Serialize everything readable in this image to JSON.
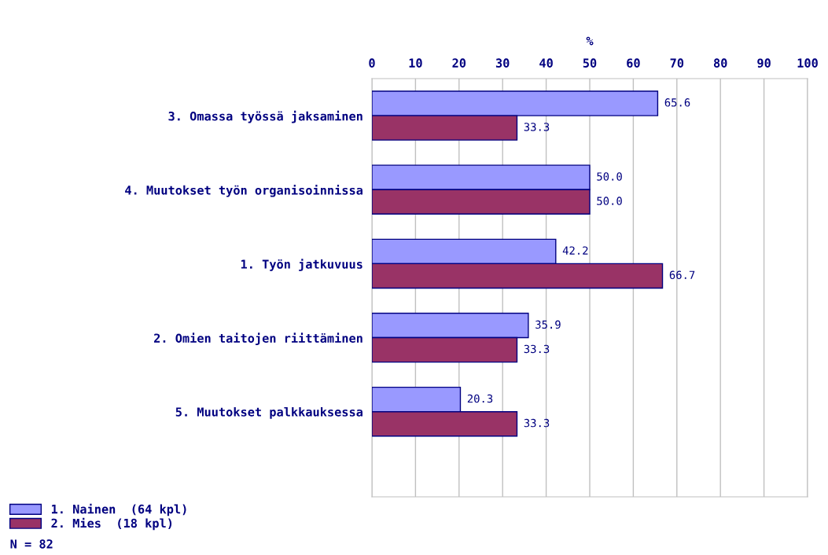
{
  "chart_data": {
    "type": "bar",
    "orientation": "horizontal",
    "xlabel": "%",
    "categories": [
      "3. Omassa työssä jaksaminen",
      "4. Muutokset työn organisoinnissa",
      "1. Työn jatkuvuus",
      "2. Omien taitojen riittäminen",
      "5. Muutokset palkkauksessa"
    ],
    "series": [
      {
        "name": "1. Nainen  (64 kpl)",
        "color": "#9999ff",
        "values": [
          65.6,
          50.0,
          42.2,
          35.9,
          20.3
        ],
        "value_labels": [
          "65.6",
          "50.0",
          "42.2",
          "35.9",
          "20.3"
        ]
      },
      {
        "name": "2. Mies  (18 kpl)",
        "color": "#993366",
        "values": [
          33.3,
          50.0,
          66.7,
          33.3,
          33.3
        ],
        "value_labels": [
          "33.3",
          "50.0",
          "66.7",
          "33.3",
          "33.3"
        ]
      }
    ],
    "xlim": [
      0,
      100
    ],
    "xticks": [
      0,
      10,
      20,
      30,
      40,
      50,
      60,
      70,
      80,
      90,
      100
    ],
    "grid": "x",
    "legend": "bottom left",
    "annotations": [
      "N = 82"
    ]
  }
}
